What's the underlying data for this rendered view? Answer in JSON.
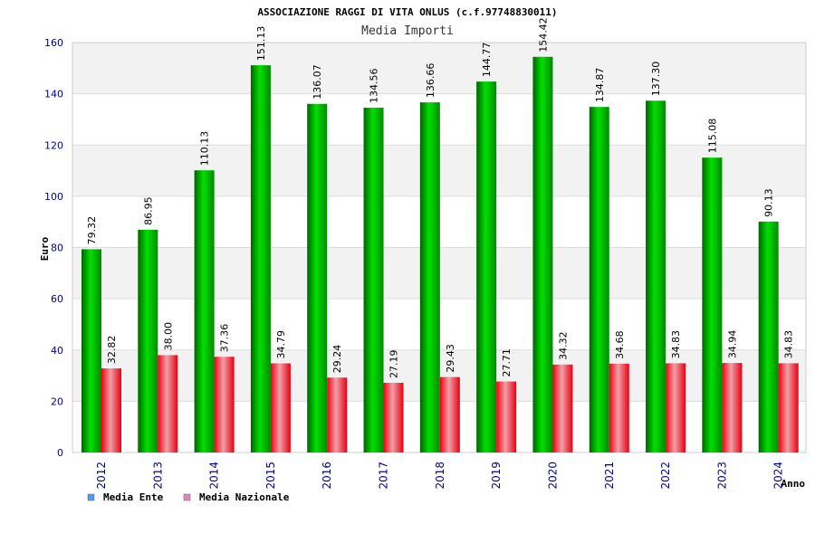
{
  "chart_data": {
    "type": "bar",
    "title": "ASSOCIAZIONE RAGGI DI VITA ONLUS (c.f.97748830011)",
    "subtitle": "Media Importi",
    "ylabel": "Euro",
    "xlabel": "Anno",
    "ylim": [
      0,
      160
    ],
    "yticks": [
      0,
      20,
      40,
      60,
      80,
      100,
      120,
      140,
      160
    ],
    "grid": true,
    "legend_position": "bottom-left",
    "categories": [
      "2012",
      "2013",
      "2014",
      "2015",
      "2016",
      "2017",
      "2018",
      "2019",
      "2020",
      "2021",
      "2022",
      "2023",
      "2024"
    ],
    "series": [
      {
        "name": "Media Ente",
        "legend_color": "#5599ee",
        "bar_color": "#00c800",
        "values": [
          79.32,
          86.95,
          110.13,
          151.13,
          136.07,
          134.56,
          136.66,
          144.77,
          154.42,
          134.87,
          137.3,
          115.08,
          90.13
        ],
        "labels": [
          "79.32",
          "86.95",
          "110.13",
          "151.13",
          "136.07",
          "134.56",
          "136.66",
          "144.77",
          "154.42",
          "134.87",
          "137.30",
          "115.08",
          "90.13"
        ]
      },
      {
        "name": "Media Nazionale",
        "legend_color": "#dd88bb",
        "bar_color": "#ee1122",
        "values": [
          32.82,
          38.0,
          37.36,
          34.79,
          29.24,
          27.19,
          29.43,
          27.71,
          34.32,
          34.68,
          34.83,
          34.94,
          34.83
        ],
        "labels": [
          "32.82",
          "38.00",
          "37.36",
          "34.79",
          "29.24",
          "27.19",
          "29.43",
          "27.71",
          "34.32",
          "34.68",
          "34.83",
          "34.94",
          "34.83"
        ]
      }
    ]
  }
}
